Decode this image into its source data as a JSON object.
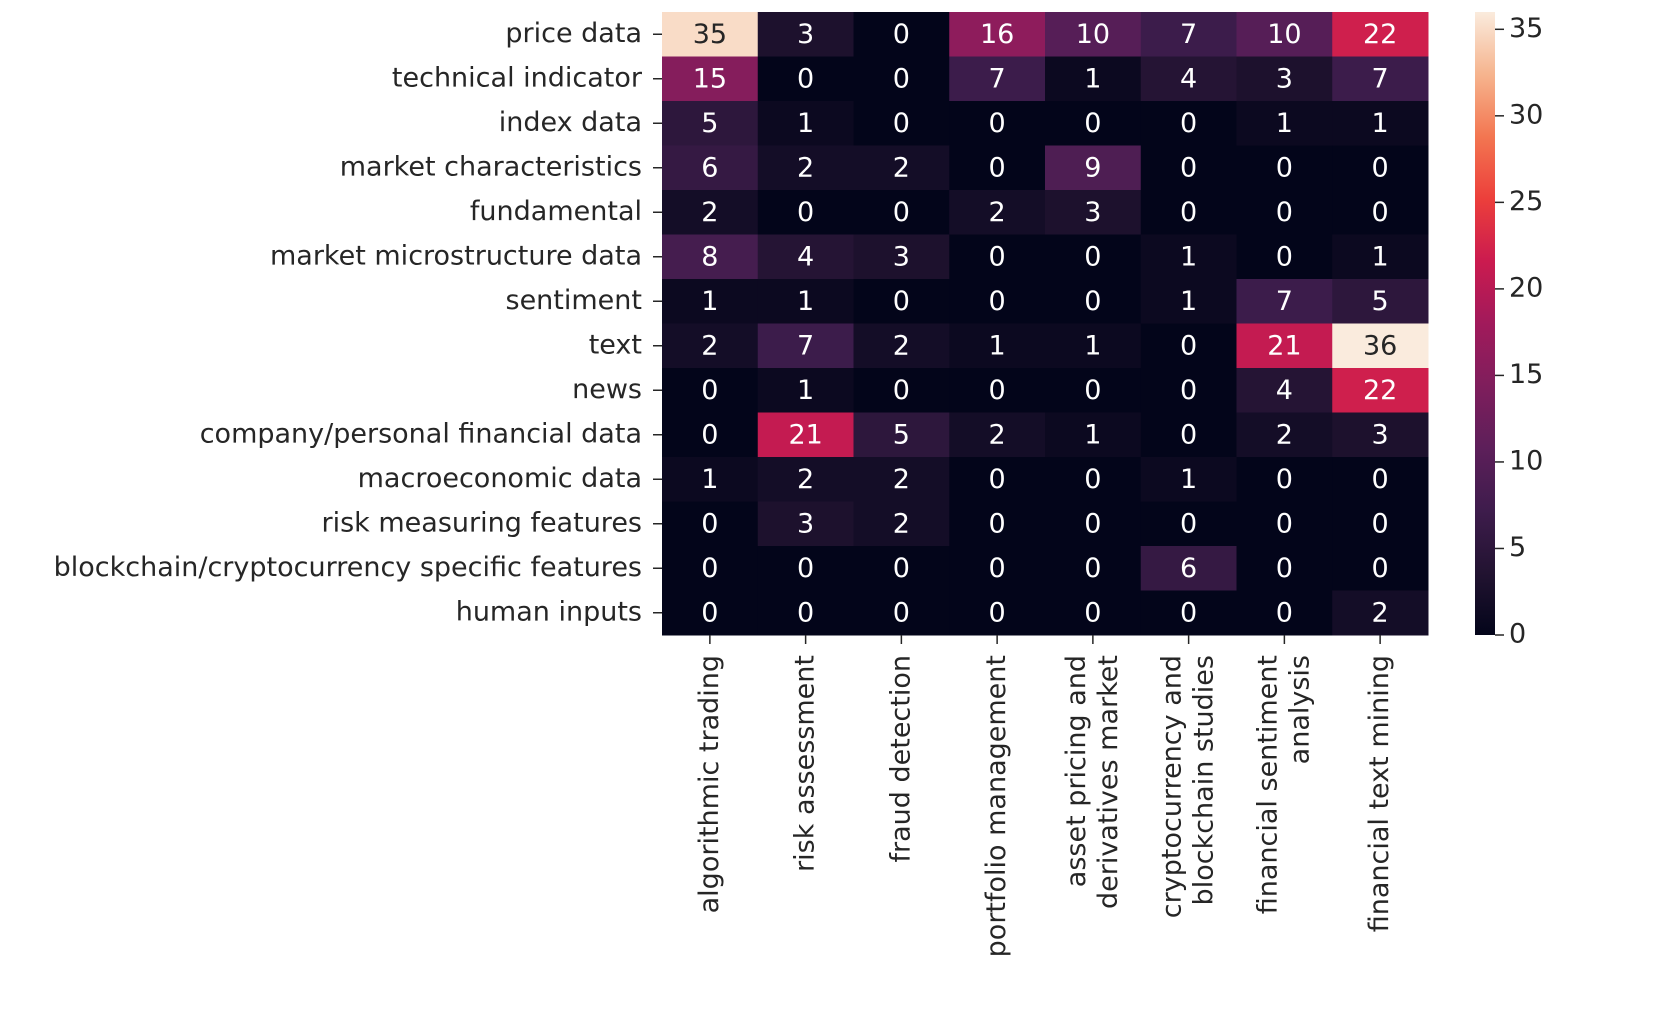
{
  "chart_data": {
    "type": "heatmap",
    "x": [
      "algorithmic trading",
      "risk assessment",
      "fraud detection",
      "portfolio management",
      "asset pricing and\nderivatives market",
      "cryptocurrency and\nblockchain studies",
      "financial sentiment\nanalysis",
      "financial text mining"
    ],
    "y": [
      "price data",
      "technical indicator",
      "index data",
      "market characteristics",
      "fundamental",
      "market microstructure data",
      "sentiment",
      "text",
      "news",
      "company/personal financial data",
      "macroeconomic data",
      "risk measuring features",
      "blockchain/cryptocurrency specific features",
      "human inputs"
    ],
    "values": [
      [
        35,
        3,
        0,
        16,
        10,
        7,
        10,
        22
      ],
      [
        15,
        0,
        0,
        7,
        1,
        4,
        3,
        7
      ],
      [
        5,
        1,
        0,
        0,
        0,
        0,
        1,
        1
      ],
      [
        6,
        2,
        2,
        0,
        9,
        0,
        0,
        0
      ],
      [
        2,
        0,
        0,
        2,
        3,
        0,
        0,
        0
      ],
      [
        8,
        4,
        3,
        0,
        0,
        1,
        0,
        1
      ],
      [
        1,
        1,
        0,
        0,
        0,
        1,
        7,
        5
      ],
      [
        2,
        7,
        2,
        1,
        1,
        0,
        21,
        36
      ],
      [
        0,
        1,
        0,
        0,
        0,
        0,
        4,
        22
      ],
      [
        0,
        21,
        5,
        2,
        1,
        0,
        2,
        3
      ],
      [
        1,
        2,
        2,
        0,
        0,
        1,
        0,
        0
      ],
      [
        0,
        3,
        2,
        0,
        0,
        0,
        0,
        0
      ],
      [
        0,
        0,
        0,
        0,
        0,
        6,
        0,
        0
      ],
      [
        0,
        0,
        0,
        0,
        0,
        0,
        0,
        2
      ]
    ],
    "clim": [
      0,
      36
    ],
    "cticks": [
      0,
      5,
      10,
      15,
      20,
      25,
      30,
      35
    ],
    "colormap": [
      "#03051a",
      "#221331",
      "#3e1c4c",
      "#5d1f5a",
      "#7f1e5c",
      "#a11a5b",
      "#cb1b4f",
      "#ec3f3b",
      "#f37651",
      "#f6b48e",
      "#faebdd"
    ]
  }
}
